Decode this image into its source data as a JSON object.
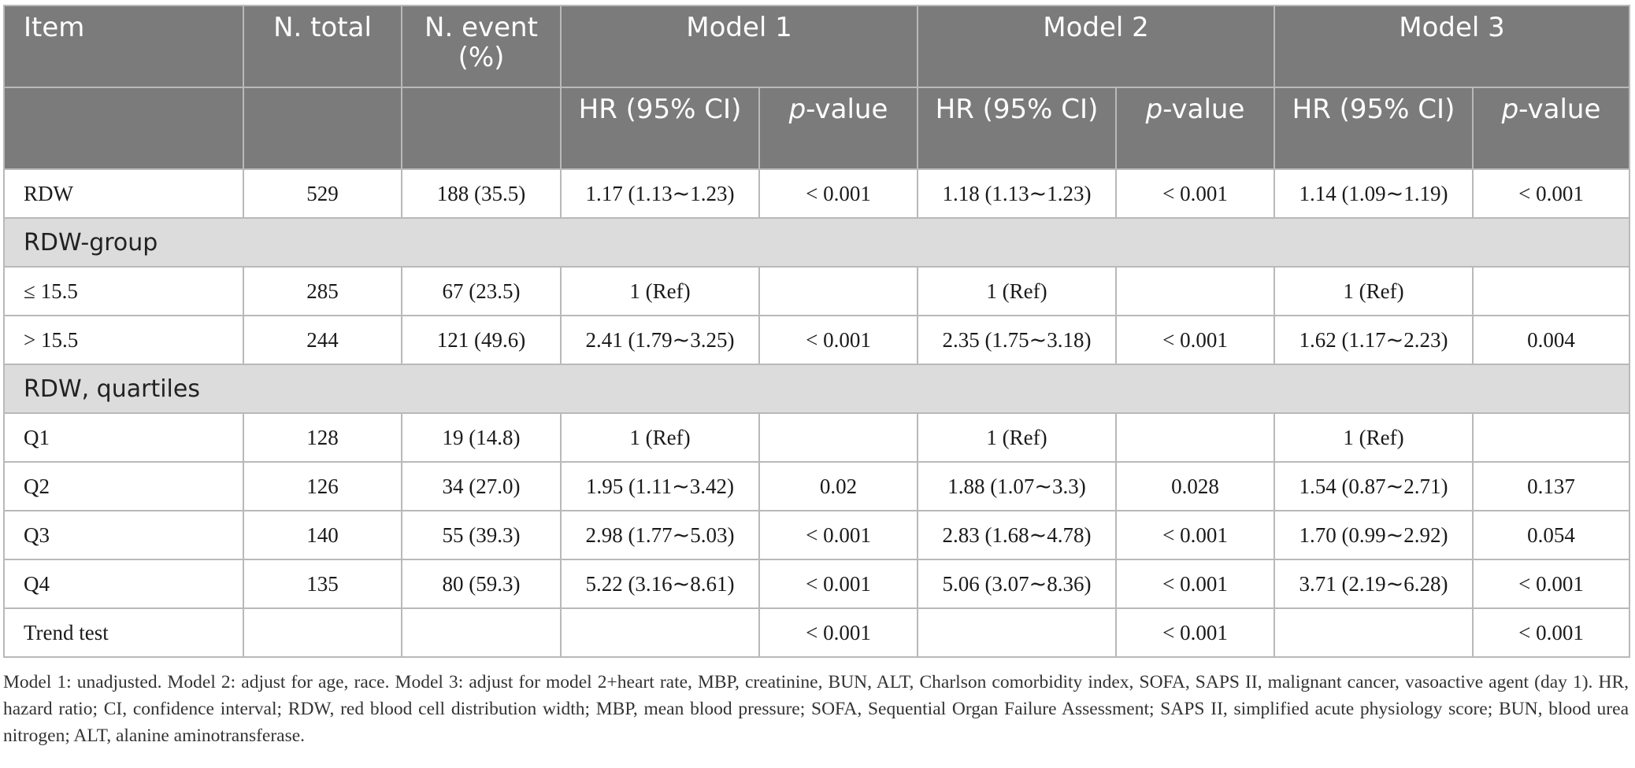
{
  "header": {
    "item": "Item",
    "n_total": "N. total",
    "n_event": "N. event (%)",
    "model1": "Model 1",
    "model2": "Model 2",
    "model3": "Model 3",
    "hr": "HR (95% CI)",
    "p_italic": "p",
    "p_rest": "-value"
  },
  "rows": {
    "rdw": [
      "RDW",
      "529",
      "188 (35.5)",
      "1.17 (1.13∼1.23)",
      "< 0.001",
      "1.18 (1.13∼1.23)",
      "< 0.001",
      "1.14 (1.09∼1.19)",
      "< 0.001"
    ],
    "group1_label": "RDW-group",
    "g_le": [
      "≤ 15.5",
      "285",
      "67 (23.5)",
      "1 (Ref)",
      "",
      "1 (Ref)",
      "",
      "1 (Ref)",
      ""
    ],
    "g_gt": [
      "> 15.5",
      "244",
      "121 (49.6)",
      "2.41 (1.79∼3.25)",
      "< 0.001",
      "2.35 (1.75∼3.18)",
      "< 0.001",
      "1.62 (1.17∼2.23)",
      "0.004"
    ],
    "group2_label": "RDW, quartiles",
    "q1": [
      "Q1",
      "128",
      "19 (14.8)",
      "1 (Ref)",
      "",
      "1 (Ref)",
      "",
      "1 (Ref)",
      ""
    ],
    "q2": [
      "Q2",
      "126",
      "34 (27.0)",
      "1.95 (1.11∼3.42)",
      "0.02",
      "1.88 (1.07∼3.3)",
      "0.028",
      "1.54 (0.87∼2.71)",
      "0.137"
    ],
    "q3": [
      "Q3",
      "140",
      "55 (39.3)",
      "2.98 (1.77∼5.03)",
      "< 0.001",
      "2.83 (1.68∼4.78)",
      "< 0.001",
      "1.70 (0.99∼2.92)",
      "0.054"
    ],
    "q4": [
      "Q4",
      "135",
      "80 (59.3)",
      "5.22 (3.16∼8.61)",
      "< 0.001",
      "5.06 (3.07∼8.36)",
      "< 0.001",
      "3.71 (2.19∼6.28)",
      "< 0.001"
    ],
    "trend": [
      "Trend test",
      "",
      "",
      "",
      "< 0.001",
      "",
      "< 0.001",
      "",
      "< 0.001"
    ]
  },
  "footnote": "Model 1: unadjusted. Model 2: adjust for age, race. Model 3: adjust for model 2+heart rate, MBP, creatinine, BUN, ALT, Charlson comorbidity index, SOFA, SAPS II, malignant cancer, vasoactive agent (day 1). HR, hazard ratio; CI, confidence interval; RDW, red blood cell distribution width; MBP, mean blood pressure; SOFA, Sequential Organ Failure Assessment; SAPS II, simplified acute physiology score; BUN, blood urea nitrogen; ALT, alanine aminotransferase."
}
